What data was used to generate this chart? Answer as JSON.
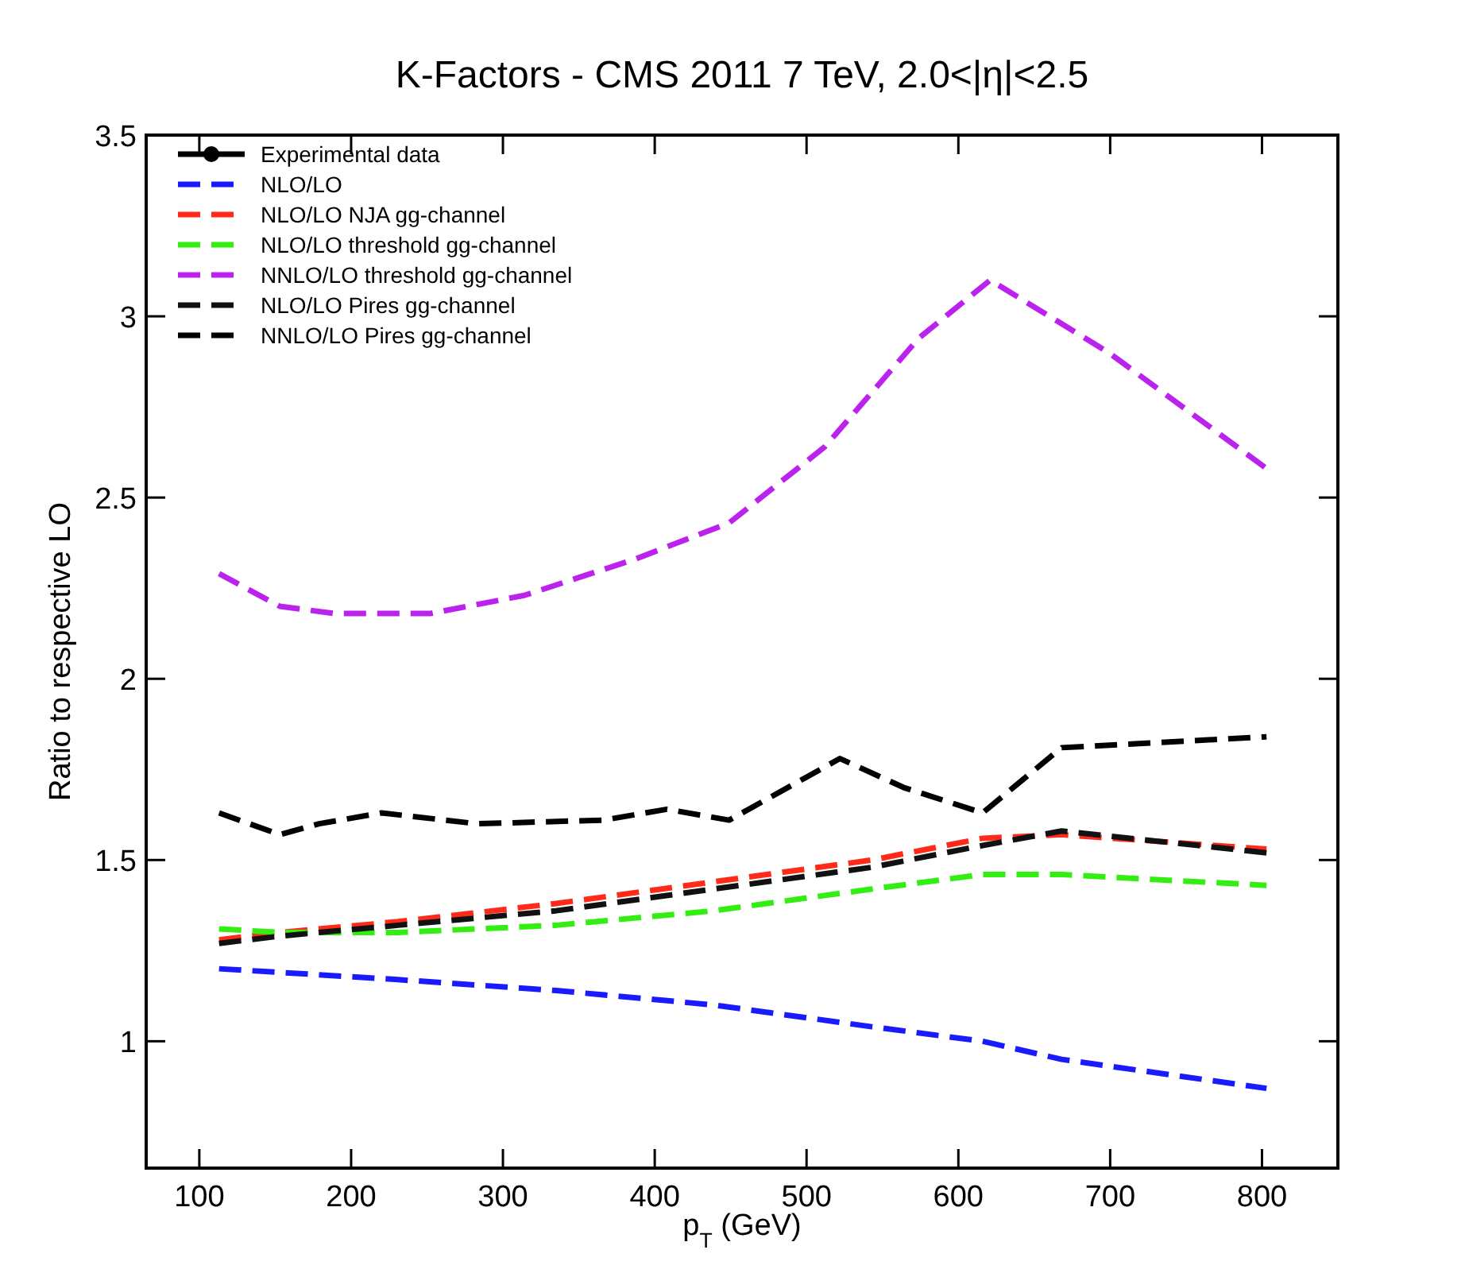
{
  "chart_data": {
    "type": "line",
    "title": "K-Factors - CMS 2011 7 TeV, 2.0<|η|<2.5",
    "xlabel": "p$_{T}$ (GeV)",
    "ylabel": "Ratio to respective LO",
    "xlim": [
      65,
      850
    ],
    "xticks": [
      100,
      200,
      300,
      400,
      500,
      600,
      700,
      800
    ],
    "ylim": [
      0.65,
      3.5
    ],
    "yticks": [
      1,
      1.5,
      2,
      2.5,
      3,
      3.5
    ],
    "grid": false,
    "legend": "top left",
    "x": [
      113,
      153,
      231,
      335,
      439,
      543,
      616,
      668,
      803
    ],
    "series": [
      {
        "name": "Experimental data",
        "color": "#000000",
        "marker": "circle",
        "line_style": "solid",
        "values": [
          null,
          null,
          null,
          null,
          null,
          null,
          null,
          null,
          null
        ]
      },
      {
        "name": "NLO/LO",
        "color": "#1a1aff",
        "line_style": "dashed",
        "values": [
          1.2,
          1.19,
          1.17,
          1.14,
          1.1,
          1.04,
          1.0,
          0.95,
          0.87
        ]
      },
      {
        "name": "NLO/LO NJA gg-channel",
        "color": "#ff2a1a",
        "line_style": "dashed",
        "values": [
          1.28,
          1.3,
          1.33,
          1.38,
          1.44,
          1.5,
          1.56,
          1.57,
          1.53
        ]
      },
      {
        "name": "NLO/LO threshold gg-channel",
        "color": "#33ee11",
        "line_style": "dashed",
        "values": [
          1.31,
          1.3,
          1.3,
          1.32,
          1.36,
          1.42,
          1.46,
          1.46,
          1.43
        ]
      },
      {
        "name": "NNLO/LO threshold gg-channel",
        "color": "#bb22ee",
        "line_style": "dashed",
        "x": [
          113,
          153,
          189,
          252,
          314,
          387,
          449,
          512,
          574,
          621,
          699,
          803
        ],
        "values": [
          2.29,
          2.2,
          2.18,
          2.18,
          2.23,
          2.33,
          2.43,
          2.64,
          2.94,
          3.1,
          2.9,
          2.58
        ]
      },
      {
        "name": "NLO/LO Pires gg-channel",
        "color": "#111111",
        "line_style": "dashed",
        "values": [
          1.27,
          1.29,
          1.32,
          1.36,
          1.42,
          1.48,
          1.54,
          1.58,
          1.52
        ]
      },
      {
        "name": "NNLO/LO Pires gg-channel",
        "color": "#000000",
        "line_style": "dashed",
        "x": [
          113,
          153,
          179,
          220,
          283,
          366,
          408,
          449,
          522,
          564,
          616,
          668,
          803
        ],
        "values": [
          1.63,
          1.57,
          1.6,
          1.63,
          1.6,
          1.61,
          1.64,
          1.61,
          1.78,
          1.7,
          1.63,
          1.81,
          1.84
        ]
      }
    ]
  }
}
